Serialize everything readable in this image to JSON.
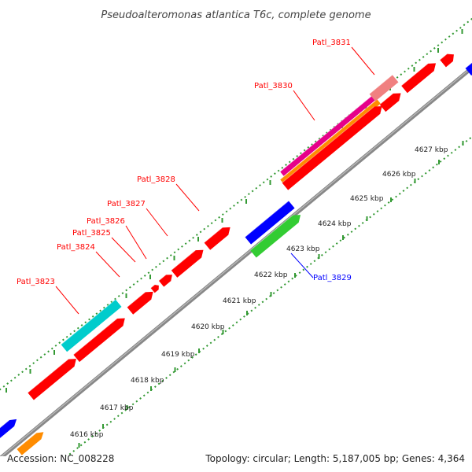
{
  "header": {
    "title": "Pseudoalteromonas atlantica T6c, complete genome"
  },
  "footer": {
    "accession": "Accession: NC_008228",
    "summary": "Topology: circular; Length: 5,187,005 bp; Genes: 4,364"
  },
  "kbp_ticks": [
    "4616 kbp",
    "4617 kbp",
    "4618 kbp",
    "4619 kbp",
    "4620 kbp",
    "4621 kbp",
    "4622 kbp",
    "4623 kbp",
    "4624 kbp",
    "4625 kbp",
    "4626 kbp",
    "4627 kbp"
  ],
  "gene_labels": [
    {
      "text": "Patl_3823",
      "color": "#ff0000"
    },
    {
      "text": "Patl_3824",
      "color": "#ff0000"
    },
    {
      "text": "Patl_3825",
      "color": "#ff0000"
    },
    {
      "text": "Patl_3826",
      "color": "#ff0000"
    },
    {
      "text": "Patl_3827",
      "color": "#ff0000"
    },
    {
      "text": "Patl_3828",
      "color": "#ff0000"
    },
    {
      "text": "Patl_3830",
      "color": "#ff0000"
    },
    {
      "text": "Patl_3831",
      "color": "#ff0000"
    },
    {
      "text": "Patl_3829",
      "color": "#0000ff"
    }
  ],
  "colors": {
    "cds_red": "#ff0000",
    "blue": "#0000ff",
    "cyan": "#00cccc",
    "green": "#33cc33",
    "orange": "#ff8c00",
    "magenta": "#e6008a",
    "pink": "#f08080",
    "backbone": "#999999",
    "gc_dots": "#339933"
  }
}
